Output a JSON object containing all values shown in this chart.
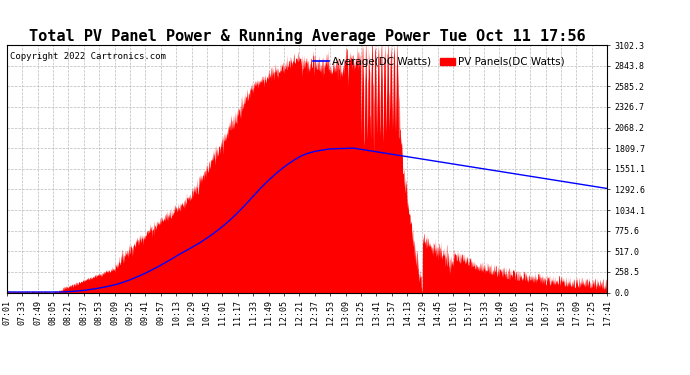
{
  "title": "Total PV Panel Power & Running Average Power Tue Oct 11 17:56",
  "copyright": "Copyright 2022 Cartronics.com",
  "legend_avg": "Average(DC Watts)",
  "legend_pv": "PV Panels(DC Watts)",
  "yticks": [
    0.0,
    258.5,
    517.0,
    775.6,
    1034.1,
    1292.6,
    1551.1,
    1809.7,
    2068.2,
    2326.7,
    2585.2,
    2843.8,
    3102.3
  ],
  "xtick_labels": [
    "07:01",
    "07:33",
    "07:49",
    "08:05",
    "08:21",
    "08:37",
    "08:53",
    "09:09",
    "09:25",
    "09:41",
    "09:57",
    "10:13",
    "10:29",
    "10:45",
    "11:01",
    "11:17",
    "11:33",
    "11:49",
    "12:05",
    "12:21",
    "12:37",
    "12:53",
    "13:09",
    "13:25",
    "13:41",
    "13:57",
    "14:13",
    "14:29",
    "14:45",
    "15:01",
    "15:17",
    "15:33",
    "15:49",
    "16:05",
    "16:21",
    "16:37",
    "16:53",
    "17:09",
    "17:25",
    "17:41"
  ],
  "pv_color": "#FF0000",
  "avg_color": "#0000FF",
  "grid_color": "#BBBBBB",
  "background_color": "#FFFFFF",
  "title_fontsize": 11,
  "copyright_fontsize": 6.5,
  "legend_fontsize": 7.5,
  "tick_fontsize": 6,
  "ymax": 3102.3,
  "ymin": 0.0,
  "figwidth": 6.9,
  "figheight": 3.75,
  "dpi": 100
}
